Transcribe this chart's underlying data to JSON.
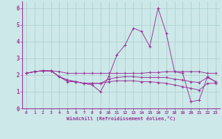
{
  "xlabel": "Windchill (Refroidissement éolien,°C)",
  "background_color": "#cce8e8",
  "line_color": "#993399",
  "grid_color": "#aacccc",
  "xlim": [
    -0.5,
    23.5
  ],
  "ylim": [
    0,
    6.4
  ],
  "xticks": [
    0,
    1,
    2,
    3,
    4,
    5,
    6,
    7,
    8,
    9,
    10,
    11,
    12,
    13,
    14,
    15,
    16,
    17,
    18,
    19,
    20,
    21,
    22,
    23
  ],
  "yticks": [
    0,
    1,
    2,
    3,
    4,
    5,
    6
  ],
  "lines": [
    [
      2.1,
      2.2,
      2.25,
      2.25,
      2.2,
      2.1,
      2.1,
      2.1,
      2.1,
      2.1,
      2.1,
      2.1,
      2.1,
      2.1,
      2.1,
      2.15,
      2.15,
      2.2,
      2.2,
      2.2,
      2.2,
      2.2,
      2.1,
      2.1
    ],
    [
      2.1,
      2.2,
      2.25,
      2.25,
      1.9,
      1.6,
      1.6,
      1.5,
      1.4,
      1.0,
      1.9,
      3.2,
      3.8,
      4.8,
      4.6,
      3.7,
      6.0,
      4.5,
      2.2,
      2.1,
      0.4,
      0.5,
      1.9,
      1.6
    ],
    [
      2.1,
      2.2,
      2.25,
      2.25,
      1.9,
      1.7,
      1.6,
      1.5,
      1.5,
      1.5,
      1.75,
      1.85,
      1.9,
      1.9,
      1.85,
      1.85,
      1.85,
      1.85,
      1.75,
      1.7,
      1.6,
      1.55,
      1.85,
      1.6
    ],
    [
      2.1,
      2.2,
      2.25,
      2.25,
      1.9,
      1.7,
      1.6,
      1.5,
      1.5,
      1.5,
      1.6,
      1.65,
      1.65,
      1.65,
      1.6,
      1.6,
      1.55,
      1.5,
      1.4,
      1.3,
      1.2,
      1.1,
      1.5,
      1.5
    ]
  ]
}
